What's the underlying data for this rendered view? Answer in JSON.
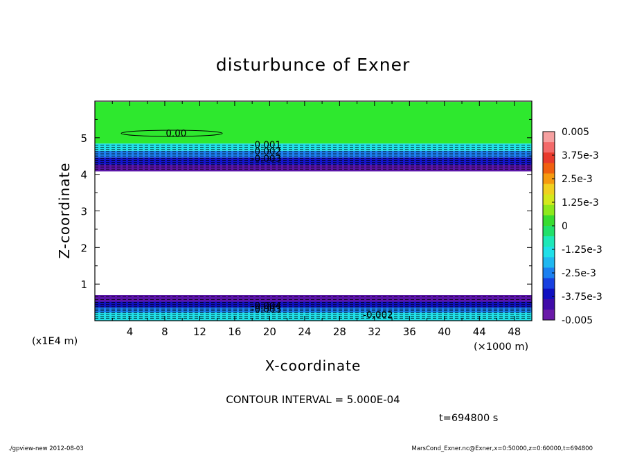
{
  "chart_data": {
    "type": "heatmap",
    "title": "disturbunce of Exner",
    "xlabel": "X-coordinate",
    "ylabel": "Z-coordinate",
    "x_unit": "(×1000 m)",
    "y_unit": "(x1E4 m)",
    "xlim": [
      0,
      50
    ],
    "ylim": [
      0,
      6
    ],
    "x_ticks": [
      "4",
      "8",
      "12",
      "16",
      "20",
      "24",
      "28",
      "32",
      "36",
      "40",
      "44",
      "48"
    ],
    "y_ticks": [
      "1",
      "2",
      "3",
      "4",
      "5"
    ],
    "contour_interval_label": "CONTOUR INTERVAL = 5.000E-04",
    "time_label": "t=694800 s",
    "colorbar": {
      "range": [
        -0.005,
        0.005
      ],
      "labels": [
        "0.005",
        "3.75e-3",
        "2.5e-3",
        "1.25e-3",
        "0",
        "-1.25e-3",
        "-2.5e-3",
        "-3.75e-3",
        "-0.005"
      ],
      "colors_top_to_bottom": [
        "#f6a0a0",
        "#f36a6a",
        "#e83a2c",
        "#f06010",
        "#f59a10",
        "#f0d020",
        "#d4e81c",
        "#8ee81c",
        "#38dc30",
        "#22e06a",
        "#1ee8b8",
        "#20e0e8",
        "#20b8f0",
        "#1c80f0",
        "#1840e0",
        "#1010c0",
        "#400ca8",
        "#6a1aa8"
      ]
    },
    "bands": [
      {
        "z_from": 5.98,
        "z_to": 4.84,
        "value": "0",
        "color": "#2ee82e"
      },
      {
        "z_from": 4.84,
        "z_to": 4.64,
        "value": "-1.25e-3",
        "color": "#20e0e8"
      },
      {
        "z_from": 4.64,
        "z_to": 4.46,
        "value": "-2.5e-3",
        "color": "#1c80f0"
      },
      {
        "z_from": 4.46,
        "z_to": 4.26,
        "value": "-3.75e-3",
        "color": "#1414c8"
      },
      {
        "z_from": 4.26,
        "z_to": 4.08,
        "value": "-0.005",
        "color": "#5a14a8"
      },
      {
        "z_from": 0.7,
        "z_to": 0.52,
        "value": "-0.005",
        "color": "#5a14a8"
      },
      {
        "z_from": 0.52,
        "z_to": 0.36,
        "value": "-3.75e-3",
        "color": "#1010c0"
      },
      {
        "z_from": 0.36,
        "z_to": 0.22,
        "value": "-2.5e-3",
        "color": "#1c80f0"
      },
      {
        "z_from": 0.22,
        "z_to": 0.0,
        "value": "-1.25e-3",
        "color": "#20e0e8"
      }
    ],
    "contour_labels": [
      {
        "text": "0.00",
        "x": 9.3,
        "z": 5.13
      },
      {
        "text": "-0.001",
        "x": 19.6,
        "z": 4.82
      },
      {
        "text": "-0.002",
        "x": 19.6,
        "z": 4.64
      },
      {
        "text": "-0.003",
        "x": 19.6,
        "z": 4.44
      },
      {
        "text": "-0.004",
        "x": 19.6,
        "z": 0.42
      },
      {
        "text": "-0.003",
        "x": 19.6,
        "z": 0.32
      },
      {
        "text": "-0.002",
        "x": 32.4,
        "z": 0.17
      }
    ]
  },
  "footer": {
    "left": "./gpview-new   2012-08-03",
    "right": "MarsCond_Exner.nc@Exner,x=0:50000,z=0:60000,t=694800"
  }
}
